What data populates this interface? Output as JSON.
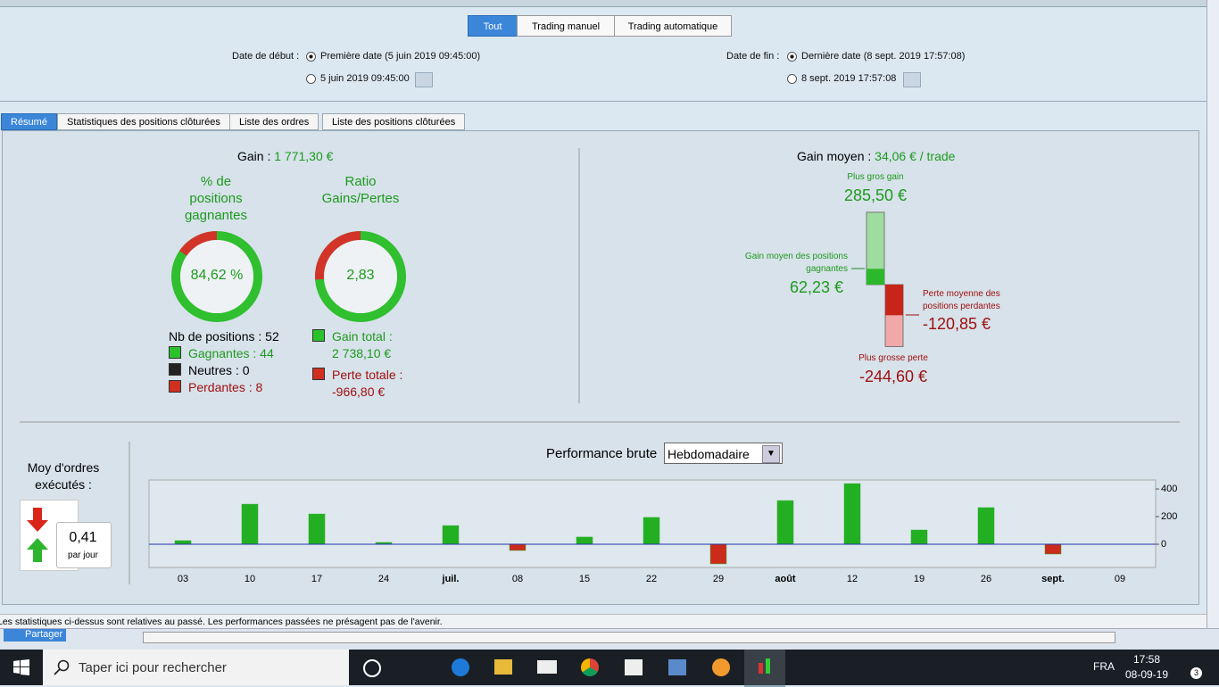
{
  "toggle": [
    "Tout",
    "Trading manuel",
    "Trading automatique"
  ],
  "dates": {
    "start_label": "Date de début :",
    "start_first": "Première date (5 juin 2019 09:45:00)",
    "start_custom": "5 juin 2019 09:45:00",
    "end_label": "Date de fin :",
    "end_last": "Dernière date (8 sept. 2019 17:57:08)",
    "end_custom": "8 sept. 2019 17:57:08"
  },
  "tabs": [
    "Résumé",
    "Statistiques des positions clôturées",
    "Liste des ordres",
    "Liste des positions clôturées"
  ],
  "summary": {
    "gain_label": "Gain :",
    "gain_value": "1 771,30 €",
    "pct_title": "% de positions gagnantes",
    "pct_value": {
      "value": 84.62,
      "label": "84,62 %"
    },
    "ratio_title": "Ratio Gains/Pertes",
    "ratio_value": "2,83",
    "nb_positions": "Nb de positions : 52",
    "winners": "Gagnantes : 44",
    "neutral": "Neutres : 0",
    "losers": "Perdantes : 8",
    "gain_total_label": "Gain total :",
    "gain_total": {
      "value": 2738.1,
      "label": "2 738,10 €"
    },
    "loss_total_label": "Perte totale :",
    "loss_total": {
      "value": -966.8,
      "label": "-966,80 €"
    }
  },
  "average": {
    "title": "Gain moyen :",
    "value": "34,06 € / trade",
    "max_gain_label": "Plus gros gain",
    "max_gain": {
      "value": 285.5,
      "label": "285,50 €"
    },
    "avg_win_label": "Gain moyen des positions gagnantes",
    "avg_win": {
      "value": 62.23,
      "label": "62,23 €"
    },
    "avg_loss_label": "Perte moyenne des positions perdantes",
    "avg_loss": {
      "value": -120.85,
      "label": "-120,85 €"
    },
    "max_loss_label": "Plus grosse perte",
    "max_loss": {
      "value": -244.6,
      "label": "-244,60 €"
    }
  },
  "orders": {
    "title": "Moy d'ordres exécutés :",
    "value": "0,41",
    "unit": "par jour"
  },
  "chart_data": {
    "type": "bar",
    "title": "Performance brute",
    "period": "Hebdomadaire",
    "categories": [
      "03",
      "10",
      "17",
      "24",
      "juil.",
      "08",
      "15",
      "22",
      "29",
      "août",
      "12",
      "19",
      "26",
      "sept.",
      "09"
    ],
    "values": [
      26,
      290,
      219,
      13,
      135,
      -45,
      52,
      194,
      -142,
      316,
      439,
      103,
      265,
      -71,
      0
    ],
    "ylim": [
      -168,
      465
    ],
    "yticks": [
      0,
      200,
      400
    ],
    "color": "#22b022",
    "negative_color": "#cc2a1a"
  },
  "disclaimer": "Les statistiques ci-dessus sont relatives au passé. Les performances passées ne présagent pas de l'avenir.",
  "toolbar": {
    "share": "Partager"
  },
  "taskbar": {
    "search": "Taper ici pour rechercher",
    "lang": "FRA",
    "time": "17:58",
    "date": "08-09-19",
    "notifications": "3"
  }
}
